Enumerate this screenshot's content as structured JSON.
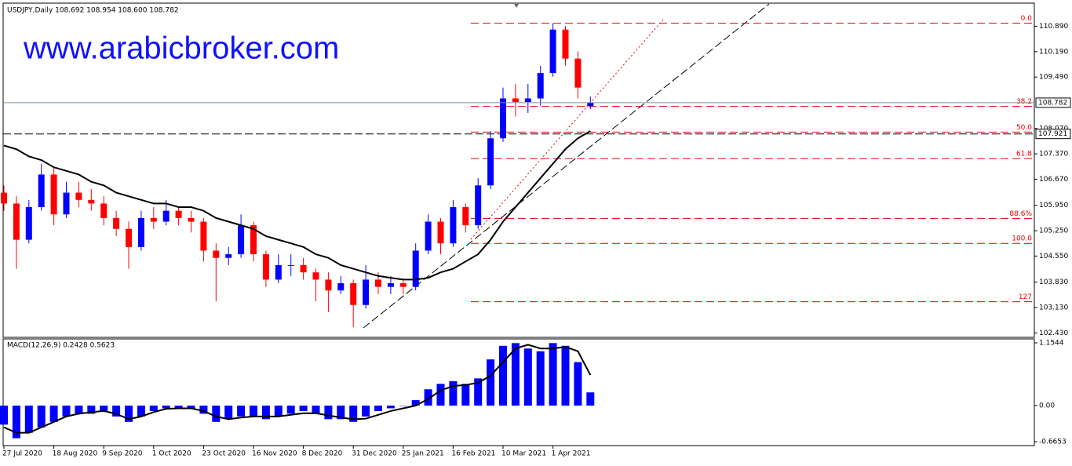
{
  "chart_data": {
    "type": "candlestick",
    "title": "USDJPY,Daily  108.692 108.954 108.600 108.782",
    "watermark": "www.arabicbroker.com",
    "up_color": "#0000ff",
    "down_color": "#ff0000",
    "ma_color": "#000000",
    "candles": [
      [
        106.3,
        106.5,
        105.8,
        106.0
      ],
      [
        106.0,
        106.2,
        104.2,
        105.0
      ],
      [
        105.0,
        106.1,
        104.9,
        105.9
      ],
      [
        105.9,
        107.1,
        105.8,
        106.8
      ],
      [
        106.8,
        107.0,
        105.4,
        105.7
      ],
      [
        105.7,
        106.6,
        105.6,
        106.3
      ],
      [
        106.3,
        106.6,
        105.9,
        106.1
      ],
      [
        106.1,
        106.4,
        105.8,
        106.0
      ],
      [
        106.0,
        106.2,
        105.4,
        105.6
      ],
      [
        105.6,
        105.8,
        105.1,
        105.3
      ],
      [
        105.3,
        105.5,
        104.2,
        104.8
      ],
      [
        104.8,
        105.8,
        104.7,
        105.6
      ],
      [
        105.6,
        105.9,
        105.3,
        105.5
      ],
      [
        105.5,
        106.1,
        105.4,
        105.8
      ],
      [
        105.8,
        105.9,
        105.4,
        105.6
      ],
      [
        105.6,
        105.8,
        105.2,
        105.5
      ],
      [
        105.5,
        105.6,
        104.4,
        104.7
      ],
      [
        104.7,
        104.9,
        103.3,
        104.5
      ],
      [
        104.5,
        104.8,
        104.3,
        104.6
      ],
      [
        104.6,
        105.7,
        104.5,
        105.4
      ],
      [
        105.4,
        105.5,
        104.4,
        104.6
      ],
      [
        104.6,
        104.7,
        103.7,
        103.9
      ],
      [
        103.9,
        104.6,
        103.8,
        104.3
      ],
      [
        104.3,
        104.6,
        104.0,
        104.3
      ],
      [
        104.3,
        104.5,
        103.9,
        104.1
      ],
      [
        104.1,
        104.2,
        103.3,
        103.9
      ],
      [
        103.9,
        104.1,
        103.0,
        103.6
      ],
      [
        103.6,
        104.0,
        103.5,
        103.8
      ],
      [
        103.8,
        103.9,
        102.59,
        103.2
      ],
      [
        103.2,
        104.3,
        103.1,
        103.9
      ],
      [
        103.9,
        104.1,
        103.5,
        103.7
      ],
      [
        103.7,
        104.0,
        103.5,
        103.8
      ],
      [
        103.8,
        103.9,
        103.5,
        103.7
      ],
      [
        103.7,
        104.9,
        103.6,
        104.7
      ],
      [
        104.7,
        105.7,
        104.6,
        105.5
      ],
      [
        105.5,
        105.6,
        104.6,
        104.9
      ],
      [
        104.9,
        106.1,
        104.8,
        105.9
      ],
      [
        105.9,
        106.0,
        105.2,
        105.4
      ],
      [
        105.4,
        106.7,
        105.3,
        106.5
      ],
      [
        106.5,
        108.0,
        106.4,
        107.8
      ],
      [
        107.8,
        109.2,
        107.7,
        108.9
      ],
      [
        108.9,
        109.3,
        108.4,
        108.8
      ],
      [
        108.8,
        109.3,
        108.5,
        108.9
      ],
      [
        108.9,
        109.8,
        108.7,
        109.6
      ],
      [
        109.6,
        110.97,
        109.5,
        110.8
      ],
      [
        110.8,
        110.9,
        109.8,
        110.0
      ],
      [
        110.0,
        110.2,
        108.9,
        109.2
      ],
      [
        108.692,
        108.954,
        108.6,
        108.782
      ]
    ],
    "ma": [
      107.6,
      107.5,
      107.3,
      107.2,
      107.0,
      106.9,
      106.8,
      106.6,
      106.5,
      106.3,
      106.2,
      106.1,
      106.0,
      106.0,
      105.9,
      105.9,
      105.8,
      105.6,
      105.5,
      105.4,
      105.3,
      105.1,
      105.0,
      104.9,
      104.8,
      104.6,
      104.5,
      104.3,
      104.2,
      104.1,
      104.0,
      103.95,
      103.9,
      103.9,
      103.95,
      104.1,
      104.2,
      104.4,
      104.6,
      105.0,
      105.5,
      105.9,
      106.3,
      106.7,
      107.1,
      107.5,
      107.8,
      108.0
    ],
    "ylim": [
      102.35,
      111.53
    ],
    "yticks": [
      {
        "value": 110.89,
        "label": "110.890"
      },
      {
        "value": 110.19,
        "label": "110.190"
      },
      {
        "value": 109.49,
        "label": "109.490"
      },
      {
        "value": 108.07,
        "label": "108.070"
      },
      {
        "value": 107.37,
        "label": "107.370"
      },
      {
        "value": 106.67,
        "label": "106.670"
      },
      {
        "value": 105.95,
        "label": "105.950"
      },
      {
        "value": 105.25,
        "label": "105.250"
      },
      {
        "value": 104.55,
        "label": "104.550"
      },
      {
        "value": 103.83,
        "label": "103.830"
      },
      {
        "value": 103.13,
        "label": "103.130"
      },
      {
        "value": 102.43,
        "label": "102.430"
      }
    ],
    "hline": 107.921,
    "fib_levels": [
      {
        "label": "0.0",
        "value": 110.976
      },
      {
        "label": "38.2",
        "value": 108.68
      },
      {
        "label": "50.0",
        "value": 107.97
      },
      {
        "label": "61.8",
        "value": 107.24
      },
      {
        "label": "88.6%",
        "value": 105.59
      },
      {
        "label": "100.0",
        "value": 104.9
      },
      {
        "label": "127",
        "value": 103.29
      }
    ],
    "dates": [
      "27 Jul 2020",
      "18 Aug 2020",
      "9 Sep 2020",
      "1 Oct 2020",
      "23 Oct 2020",
      "16 Nov 2020",
      "8 Dec 2020",
      "31 Dec 2020",
      "25 Jan 2021",
      "16 Feb 2021",
      "10 Mar 2021",
      "1 Apr 2021"
    ],
    "macd": {
      "label": "MACD(12,26,9) 0.2428 0.5623",
      "color": "#0000ff",
      "histogram": [
        -0.35,
        -0.6,
        -0.5,
        -0.4,
        -0.3,
        -0.2,
        -0.15,
        -0.15,
        -0.1,
        -0.2,
        -0.3,
        -0.2,
        -0.1,
        -0.05,
        -0.05,
        -0.05,
        -0.15,
        -0.3,
        -0.25,
        -0.2,
        -0.2,
        -0.25,
        -0.2,
        -0.15,
        -0.1,
        -0.15,
        -0.25,
        -0.25,
        -0.3,
        -0.2,
        -0.1,
        -0.05,
        0.0,
        0.1,
        0.3,
        0.4,
        0.45,
        0.4,
        0.5,
        0.85,
        1.1,
        1.15,
        1.05,
        1.0,
        1.15,
        1.1,
        0.8,
        0.2428
      ],
      "signal": [
        -0.4,
        -0.5,
        -0.5,
        -0.4,
        -0.3,
        -0.2,
        -0.15,
        -0.12,
        -0.1,
        -0.15,
        -0.25,
        -0.2,
        -0.12,
        -0.06,
        -0.05,
        -0.05,
        -0.1,
        -0.2,
        -0.25,
        -0.22,
        -0.2,
        -0.2,
        -0.2,
        -0.17,
        -0.14,
        -0.14,
        -0.18,
        -0.22,
        -0.25,
        -0.24,
        -0.17,
        -0.1,
        -0.05,
        0.0,
        0.12,
        0.28,
        0.36,
        0.38,
        0.42,
        0.55,
        0.8,
        1.05,
        1.12,
        1.05,
        1.05,
        1.08,
        1.0,
        0.5623
      ],
      "ylim": [
        -0.736,
        1.227
      ],
      "yticks": [
        1.1544,
        {
          "value": 0,
          "label": "0.00"
        },
        -0.6653
      ]
    }
  }
}
